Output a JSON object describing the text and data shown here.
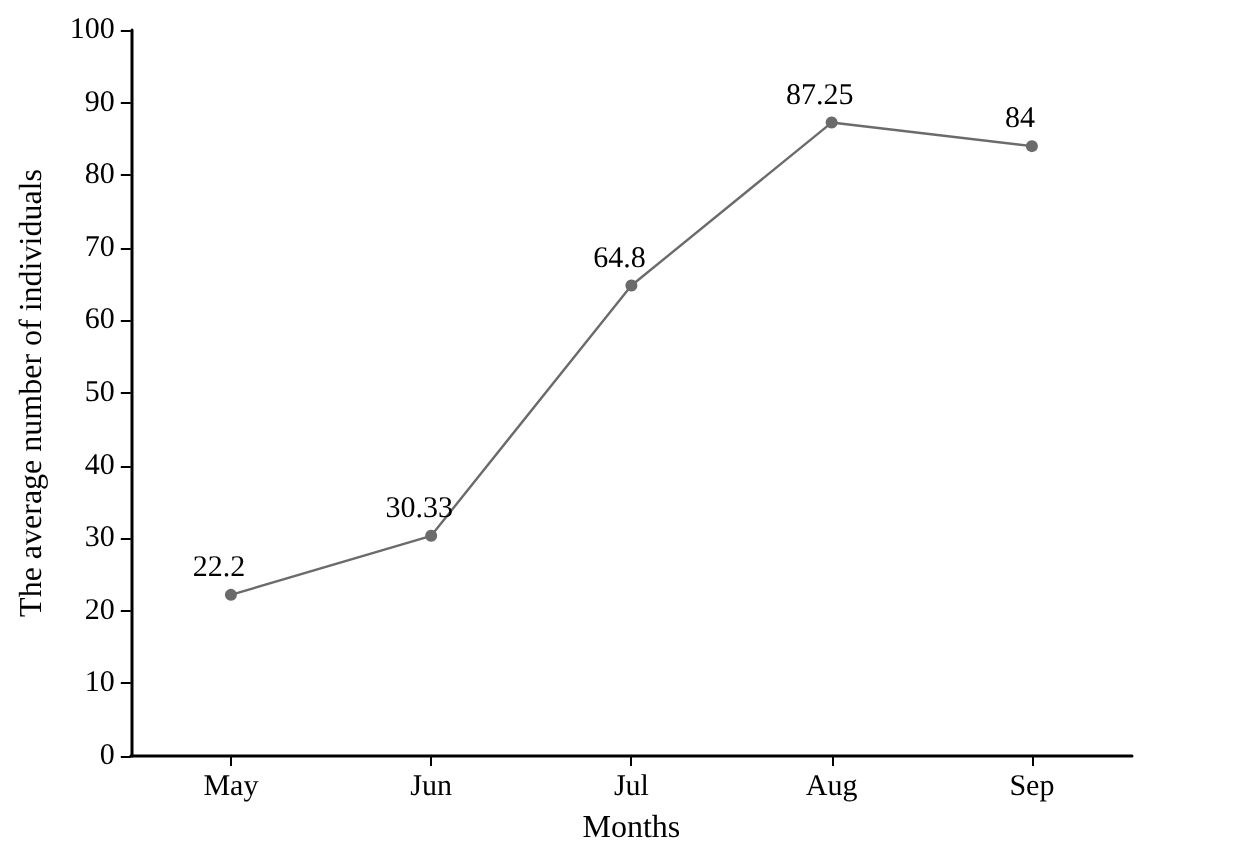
{
  "chart_data": {
    "type": "line",
    "xlabel": "Months",
    "ylabel": "The average number of individuals",
    "categories": [
      "May",
      "Jun",
      "Jul",
      "Aug",
      "Sep"
    ],
    "series": [
      {
        "color": "#6b6b6b",
        "values": [
          22.2,
          30.33,
          64.8,
          87.25,
          84
        ]
      }
    ],
    "ylim": [
      0,
      100
    ],
    "yticks": [
      0,
      10,
      20,
      30,
      40,
      50,
      60,
      70,
      80,
      90,
      100
    ],
    "grid": false,
    "marker": "circle",
    "line_style": "solid",
    "data_labels": true
  }
}
